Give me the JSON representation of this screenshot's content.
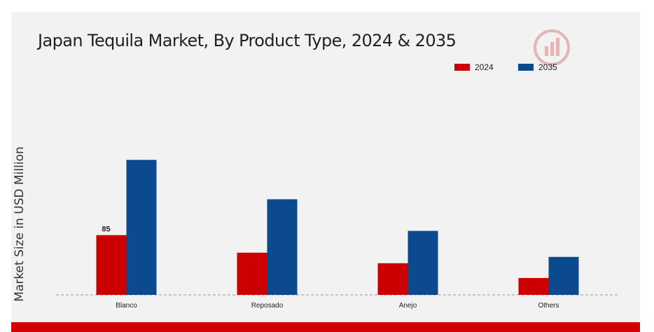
{
  "title": "Japan Tequila Market, By Product Type, 2024 & 2035",
  "colors": {
    "series_2024": "#cc0000",
    "series_2035": "#0b4a8f",
    "band": "#d30000",
    "background": "#f2f2f2"
  },
  "logo_icon": "market-research-logo-icon",
  "chart_data": {
    "type": "bar",
    "title": "Japan Tequila Market, By Product Type, 2024 & 2035",
    "ylabel": "Market Size in USD Million",
    "xlabel": "",
    "categories": [
      "Blanco",
      "Reposado",
      "Anejo",
      "Others"
    ],
    "series": [
      {
        "name": "2024",
        "color": "#cc0000",
        "values": [
          85,
          60,
          45,
          24
        ]
      },
      {
        "name": "2035",
        "color": "#0b4a8f",
        "values": [
          192,
          136,
          91,
          54
        ]
      }
    ],
    "data_labels": [
      {
        "series": "2024",
        "category": "Blanco",
        "text": "85"
      }
    ],
    "ylim": [
      0,
      260
    ],
    "grid": false,
    "legend": "top-right"
  }
}
